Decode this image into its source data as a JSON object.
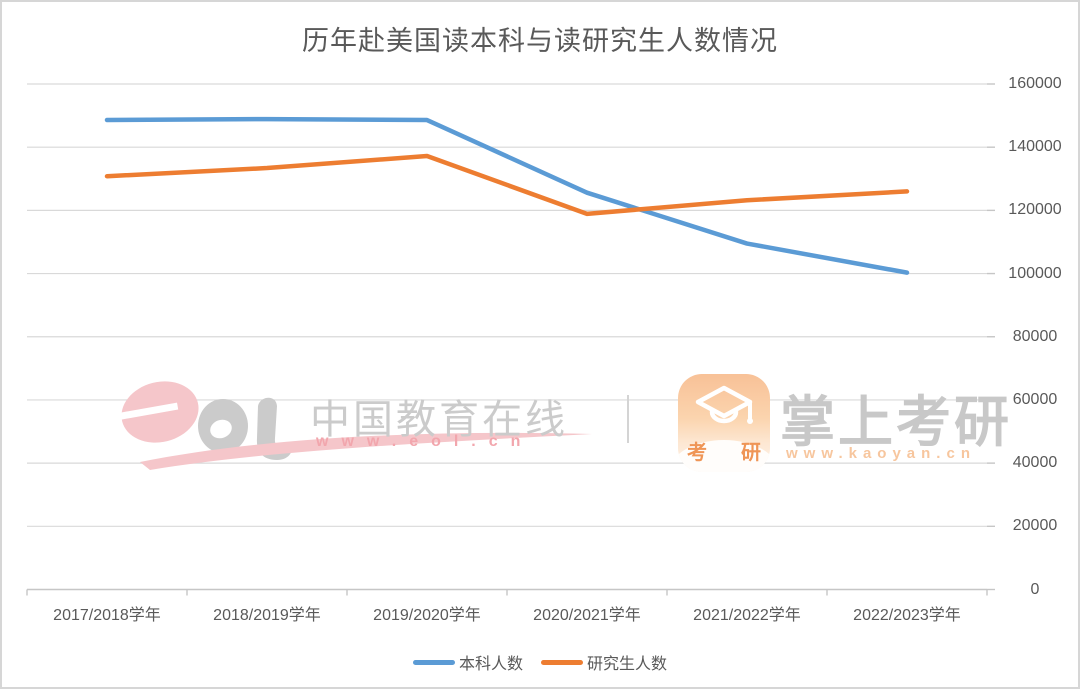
{
  "page": {
    "background": "#ffffff",
    "border_color": "#d6d6d6"
  },
  "chart_data": {
    "type": "line",
    "title": "历年赴美国读本科与读研究生人数情况",
    "categories": [
      "2017/2018学年",
      "2018/2019学年",
      "2019/2020学年",
      "2020/2021学年",
      "2021/2022学年",
      "2022/2023学年"
    ],
    "series": [
      {
        "key": "undergrad",
        "name": "本科人数",
        "color": "#5B9BD5",
        "values": [
          148600,
          148900,
          148600,
          125600,
          109500,
          100300
        ]
      },
      {
        "key": "graduate",
        "name": "研究生人数",
        "color": "#ED7D31",
        "values": [
          130800,
          133400,
          137200,
          118900,
          123200,
          126000
        ]
      }
    ],
    "y_axis": {
      "side": "right",
      "min": 0,
      "max": 160000,
      "step": 20000,
      "tick_labels": [
        "0",
        "20000",
        "40000",
        "60000",
        "80000",
        "100000",
        "120000",
        "140000",
        "160000"
      ]
    },
    "grid": true,
    "legend_position": "bottom",
    "gridline_color": "#d9d9d9",
    "axis_line_color": "#c6c6c6",
    "axis_text_color": "#595959"
  },
  "watermarks": {
    "eol": {
      "logo_icon": "eol-logo",
      "name": "中国教育在线",
      "url": "www.eol.cn",
      "pink": "#f5c6ca",
      "gray": "#cbcbcb"
    },
    "kaoyan": {
      "app_icon": "graduation-cap-app-icon",
      "badge_left": "考",
      "badge_right": "研",
      "name": "掌上考研",
      "url": "www.kaoyan.cn",
      "orange": "#f8c197",
      "gray": "#c8c8c8"
    }
  }
}
